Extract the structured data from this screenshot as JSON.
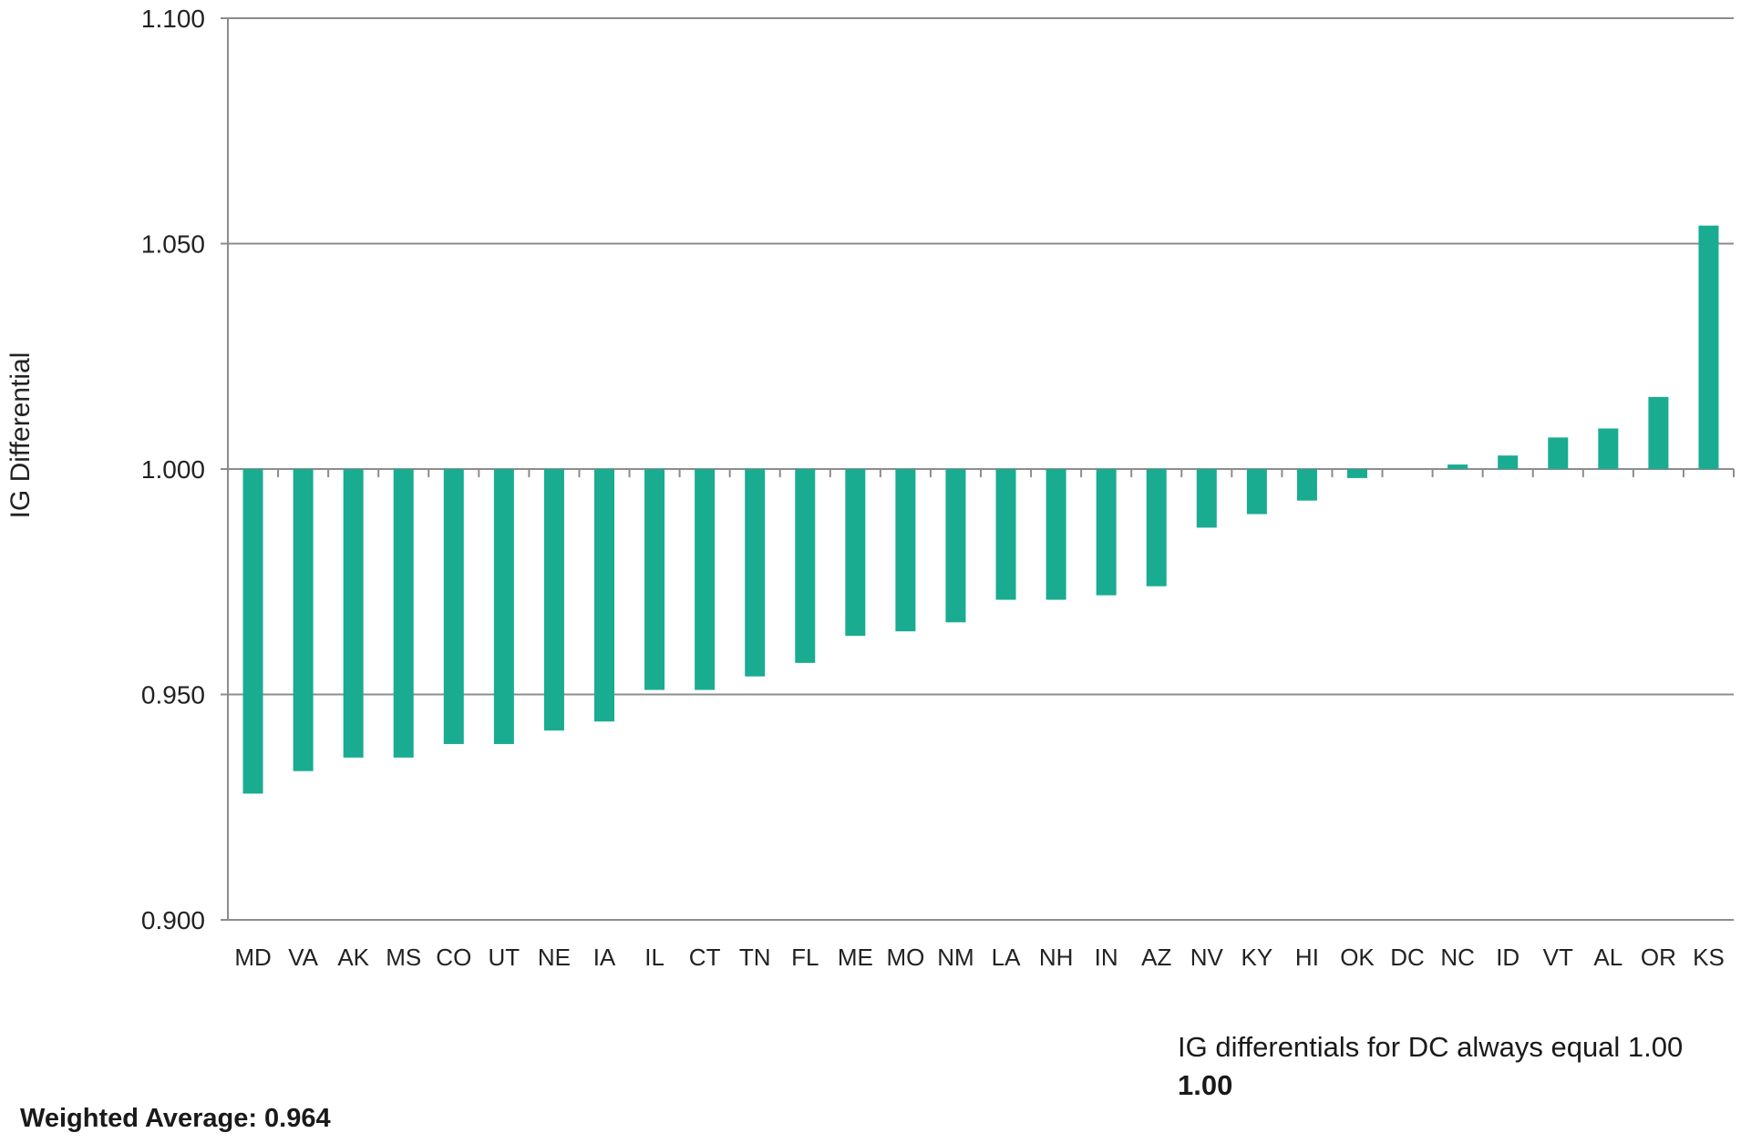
{
  "chart_data": {
    "type": "bar",
    "title": "",
    "xlabel": "",
    "ylabel": "IG Differential",
    "ylim": [
      0.9,
      1.1
    ],
    "baseline": 1.0,
    "yticks": [
      "0.900",
      "0.950",
      "1.000",
      "1.050",
      "1.100"
    ],
    "ytick_values": [
      0.9,
      0.95,
      1.0,
      1.05,
      1.1
    ],
    "grid": true,
    "bar_color": "#19AC91",
    "categories": [
      "MD",
      "VA",
      "AK",
      "MS",
      "CO",
      "UT",
      "NE",
      "IA",
      "IL",
      "CT",
      "TN",
      "FL",
      "ME",
      "MO",
      "NM",
      "LA",
      "NH",
      "IN",
      "AZ",
      "NV",
      "KY",
      "HI",
      "OK",
      "DC",
      "NC",
      "ID",
      "VT",
      "AL",
      "OR",
      "KS"
    ],
    "values": [
      0.928,
      0.933,
      0.936,
      0.936,
      0.939,
      0.939,
      0.942,
      0.944,
      0.951,
      0.951,
      0.954,
      0.957,
      0.963,
      0.964,
      0.966,
      0.971,
      0.971,
      0.972,
      0.974,
      0.987,
      0.99,
      0.993,
      0.998,
      1.0,
      1.001,
      1.003,
      1.007,
      1.009,
      1.016,
      1.054
    ]
  },
  "annotations": {
    "dc_note": "IG differentials for DC always equal 1.00",
    "dc_value": "1.00",
    "weighted_average": "Weighted Average: 0.964"
  }
}
